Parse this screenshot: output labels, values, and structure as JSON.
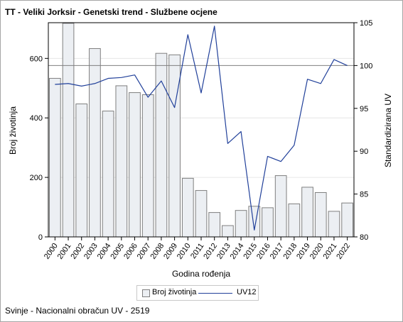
{
  "title": "TT - Veliki Jorksir - Genetski trend - Službene ocjene",
  "footnote": "Svinje - Nacionalni obračun UV - 2519",
  "legend": {
    "bar_label": "Broj životinja",
    "line_label": "UV12"
  },
  "colors": {
    "bar_fill": "#eceff3",
    "bar_stroke": "#7f7f7f",
    "line": "#21409a",
    "grid": "#e6e6e6",
    "reference_line": "#7f7f7f"
  },
  "chart_data": {
    "type": "bar",
    "title": "TT - Veliki Jorksir - Genetski trend - Službene ocjene",
    "xlabel": "Godina rođenja",
    "ylabel": "Broj životinja",
    "y2label": "Standardizirana UV",
    "ylim": [
      0,
      720
    ],
    "y2lim": [
      80,
      105
    ],
    "yticks": [
      0,
      200,
      400,
      600
    ],
    "y2ticks": [
      80,
      85,
      90,
      95,
      100,
      105
    ],
    "reference_y2": 100,
    "grid": true,
    "legend_position": "bottom",
    "categories": [
      "2000",
      "2001",
      "2002",
      "2003",
      "2004",
      "2005",
      "2006",
      "2007",
      "2008",
      "2009",
      "2010",
      "2011",
      "2012",
      "2013",
      "2014",
      "2015",
      "2016",
      "2017",
      "2018",
      "2019",
      "2020",
      "2021",
      "2022"
    ],
    "series": [
      {
        "name": "Broj životinja",
        "type": "bar",
        "axis": "left",
        "values": [
          533,
          718,
          447,
          633,
          423,
          508,
          485,
          478,
          617,
          612,
          197,
          156,
          82,
          38,
          89,
          103,
          98,
          206,
          111,
          167,
          149,
          86,
          114
        ]
      },
      {
        "name": "UV12",
        "type": "line",
        "axis": "right",
        "values": [
          97.8,
          97.9,
          97.6,
          97.9,
          98.5,
          98.6,
          98.9,
          96.3,
          98.2,
          95.1,
          103.6,
          96.8,
          104.6,
          90.9,
          92.3,
          80.8,
          89.4,
          88.8,
          90.7,
          98.4,
          97.9,
          100.7,
          100.0
        ]
      }
    ]
  }
}
